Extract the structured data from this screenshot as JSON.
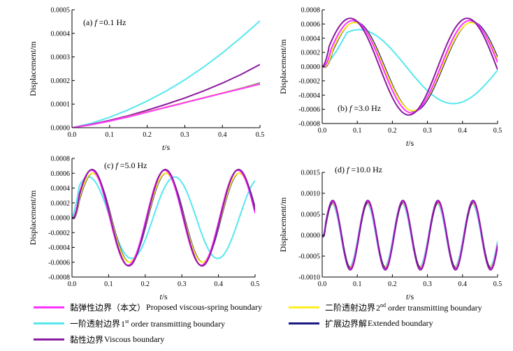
{
  "legend": [
    {
      "key": "proposed",
      "zh": "黏弹性边界（本文）",
      "en": "Proposed viscous-spring boundary",
      "sup": "",
      "en_after": "",
      "color": "#ff33ff"
    },
    {
      "key": "second",
      "zh": "二阶透射边界",
      "en": "2",
      "sup": "nd",
      "en_after": " order transmitting boundary",
      "color": "#ffee22"
    },
    {
      "key": "first",
      "zh": "一阶透射边界",
      "en": "1",
      "sup": "st",
      "en_after": " order transmitting boundary",
      "color": "#55e8ee"
    },
    {
      "key": "extended",
      "zh": "扩展边界解",
      "en": "Extended boundary",
      "sup": "",
      "en_after": "",
      "color": "#1a1a80"
    },
    {
      "key": "viscous",
      "zh": "黏性边界",
      "en": "Viscous boundary",
      "sup": "",
      "en_after": "",
      "color": "#8a1aa0"
    }
  ],
  "chart_data": [
    {
      "type": "line",
      "title_prefix": "(a) ",
      "title_f": "f",
      "title_suffix": " =0.1 Hz",
      "xlabel_t": "t",
      "xlabel_unit": "/s",
      "ylabel": "Displacement/m",
      "xlim": [
        0,
        0.5
      ],
      "ylim": [
        0,
        0.0005
      ],
      "xticks": [
        "0.0",
        "0.1",
        "0.2",
        "0.3",
        "0.4",
        "0.5"
      ],
      "yticks": [
        "0.0000",
        "0.0001",
        "0.0002",
        "0.0003",
        "0.0004",
        "0.0005"
      ],
      "freq": 0.1,
      "series": [
        {
          "key": "first",
          "x": [
            0,
            0.05,
            0.1,
            0.15,
            0.2,
            0.25,
            0.3,
            0.35,
            0.4,
            0.45,
            0.5
          ],
          "y": [
            0,
            1.8e-05,
            4.4e-05,
            7.6e-05,
            0.000113,
            0.000155,
            0.000203,
            0.000257,
            0.000317,
            0.000383,
            0.000453
          ]
        },
        {
          "key": "viscous",
          "x": [
            0,
            0.05,
            0.1,
            0.15,
            0.2,
            0.25,
            0.3,
            0.35,
            0.4,
            0.45,
            0.5
          ],
          "y": [
            0,
            1.4e-05,
            3.1e-05,
            5.1e-05,
            7.4e-05,
            9.9e-05,
            0.000126,
            0.000156,
            0.000189,
            0.000226,
            0.000268
          ]
        },
        {
          "key": "extended",
          "x": [
            0,
            0.05,
            0.1,
            0.15,
            0.2,
            0.25,
            0.3,
            0.35,
            0.4,
            0.45,
            0.5
          ],
          "y": [
            0,
            1.2e-05,
            2.8e-05,
            4.7e-05,
            6.7e-05,
            8.8e-05,
            0.000108,
            0.000128,
            0.000148,
            0.000168,
            0.00019
          ]
        },
        {
          "key": "second",
          "x": [
            0,
            0.05,
            0.1,
            0.15,
            0.2,
            0.25,
            0.3,
            0.35,
            0.4,
            0.45,
            0.5
          ],
          "y": [
            0,
            1.2e-05,
            2.8e-05,
            4.7e-05,
            6.7e-05,
            8.7e-05,
            0.000107,
            0.000127,
            0.000147,
            0.000166,
            0.000187
          ]
        },
        {
          "key": "proposed",
          "x": [
            0,
            0.05,
            0.1,
            0.15,
            0.2,
            0.25,
            0.3,
            0.35,
            0.4,
            0.45,
            0.5
          ],
          "y": [
            0,
            1.2e-05,
            2.8e-05,
            4.6e-05,
            6.6e-05,
            8.6e-05,
            0.000106,
            0.000126,
            0.000146,
            0.000165,
            0.000185
          ]
        }
      ]
    },
    {
      "type": "line",
      "title_prefix": "(b) ",
      "title_f": "f",
      "title_suffix": " =3.0 Hz",
      "xlabel_t": "t",
      "xlabel_unit": "/s",
      "ylabel": "Displacement/m",
      "xlim": [
        0,
        0.5
      ],
      "ylim": [
        -0.0008,
        0.0008
      ],
      "xticks": [
        "0.0",
        "0.1",
        "0.2",
        "0.3",
        "0.4",
        "0.5"
      ],
      "yticks": [
        "-0.0008",
        "-0.0006",
        "-0.0004",
        "-0.0002",
        "0.0000",
        "0.0002",
        "0.0004",
        "0.0006",
        "0.0008"
      ],
      "freq": 3.0,
      "series": [
        {
          "key": "first",
          "amp": 0.00052,
          "peak": 0.105,
          "scale": 0.62,
          "offset": 0.0,
          "ramp": 0.07
        },
        {
          "key": "extended",
          "amp": 0.00063,
          "peak": 0.095,
          "scale": 1.0,
          "offset": 0.0,
          "ramp": 0.03
        },
        {
          "key": "second",
          "amp": 0.00062,
          "peak": 0.092,
          "scale": 1.0,
          "offset": 0.0,
          "ramp": 0.03
        },
        {
          "key": "proposed",
          "amp": 0.00065,
          "peak": 0.088,
          "scale": 1.0,
          "offset": 0.0,
          "ramp": 0.025
        },
        {
          "key": "viscous",
          "amp": 0.00068,
          "peak": 0.08,
          "scale": 1.0,
          "offset": 0.0,
          "ramp": 0.02
        }
      ]
    },
    {
      "type": "line",
      "title_prefix": "(c) ",
      "title_f": "f",
      "title_suffix": " =5.0 Hz",
      "xlabel_t": "t",
      "xlabel_unit": "/s",
      "ylabel": "Displacement/m",
      "xlim": [
        0,
        0.5
      ],
      "ylim": [
        -0.0008,
        0.0008
      ],
      "xticks": [
        "0.0",
        "0.1",
        "0.2",
        "0.3",
        "0.4",
        "0.5"
      ],
      "yticks": [
        "-0.0008",
        "-0.0006",
        "-0.0004",
        "-0.0002",
        "0.0000",
        "0.0002",
        "0.0004",
        "0.0006",
        "0.0008"
      ],
      "freq": 5.0,
      "series": [
        {
          "key": "first",
          "amp": 0.00055,
          "peak": 0.045,
          "scale": 0.85,
          "offset": 0.0,
          "ramp": 0.02
        },
        {
          "key": "extended",
          "amp": 0.0006,
          "peak": 0.058,
          "scale": 1.0,
          "offset": 0.0,
          "ramp": 0.02
        },
        {
          "key": "second",
          "amp": 0.0006,
          "peak": 0.056,
          "scale": 1.0,
          "offset": 0.0,
          "ramp": 0.02
        },
        {
          "key": "proposed",
          "amp": 0.00064,
          "peak": 0.053,
          "scale": 1.0,
          "offset": 0.0,
          "ramp": 0.02
        },
        {
          "key": "viscous",
          "amp": 0.00065,
          "peak": 0.055,
          "scale": 1.0,
          "offset": 0.0,
          "ramp": 0.02
        }
      ]
    },
    {
      "type": "line",
      "title_prefix": "(d) ",
      "title_f": "f",
      "title_suffix": " =10.0 Hz",
      "xlabel_t": "t",
      "xlabel_unit": "/s",
      "ylabel": "Displacement/m",
      "xlim": [
        0,
        0.5
      ],
      "ylim": [
        -0.001,
        0.0015
      ],
      "xticks": [
        "0.0",
        "0.1",
        "0.2",
        "0.3",
        "0.4",
        "0.5"
      ],
      "yticks": [
        "-0.0010",
        "-0.0005",
        "0.0000",
        "0.0005",
        "0.0010",
        "0.0015"
      ],
      "freq": 10.0,
      "series": [
        {
          "key": "first",
          "amp": 0.00075,
          "peak": 0.028,
          "scale": 1.0,
          "offset": 0.0,
          "ramp": 0.01
        },
        {
          "key": "second",
          "amp": 0.00076,
          "peak": 0.03,
          "scale": 1.0,
          "offset": 0.0,
          "ramp": 0.01
        },
        {
          "key": "extended",
          "amp": 0.00078,
          "peak": 0.031,
          "scale": 1.0,
          "offset": 0.0,
          "ramp": 0.01
        },
        {
          "key": "proposed",
          "amp": 0.0008,
          "peak": 0.029,
          "scale": 1.0,
          "offset": 0.0,
          "ramp": 0.01
        },
        {
          "key": "viscous",
          "amp": 0.00083,
          "peak": 0.03,
          "scale": 1.0,
          "offset": 0.0,
          "ramp": 0.01
        }
      ]
    }
  ]
}
